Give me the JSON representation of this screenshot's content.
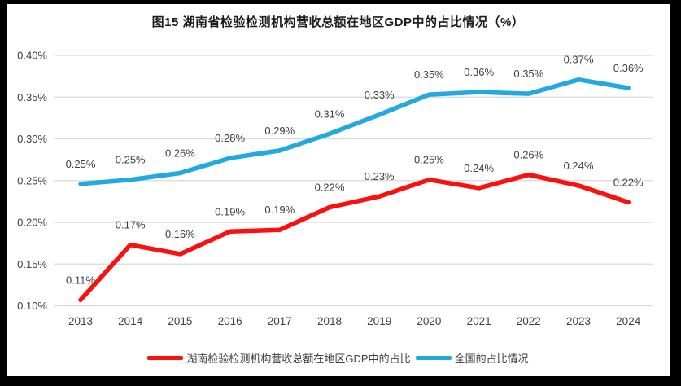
{
  "frame": {
    "background": "#000000",
    "canvas_background": "#ffffff"
  },
  "colors": {
    "grid": "#d9d9d9",
    "axis_text": "#404040",
    "data_label_text": "#404040",
    "title_text": "#1a1a1a",
    "hunan_red": "#fb0f0f",
    "national_blue": "#22a9e0"
  },
  "chart_data": {
    "type": "line",
    "title": "图15 湖南省检验检测机构营收总额在地区GDP中的占比情况（%）",
    "xlabel": "",
    "ylabel": "",
    "grid": true,
    "legend_position": "bottom",
    "categories": [
      "2013",
      "2014",
      "2015",
      "2016",
      "2017",
      "2018",
      "2019",
      "2020",
      "2021",
      "2022",
      "2023",
      "2024"
    ],
    "y_axis": {
      "min": 0.1,
      "max": 0.4,
      "step": 0.05,
      "tick_labels": [
        "0.10%",
        "0.15%",
        "0.20%",
        "0.25%",
        "0.30%",
        "0.35%",
        "0.40%"
      ]
    },
    "series": [
      {
        "name": "湖南检验检测机构营收总额在地区GDP中的占比",
        "color": "#fb0f0f",
        "values": [
          0.107,
          0.173,
          0.162,
          0.189,
          0.191,
          0.218,
          0.231,
          0.251,
          0.241,
          0.257,
          0.244,
          0.224
        ],
        "labels": [
          "0.11%",
          "0.17%",
          "0.16%",
          "0.19%",
          "0.19%",
          "0.22%",
          "0.23%",
          "0.25%",
          "0.24%",
          "0.26%",
          "0.24%",
          "0.22%"
        ]
      },
      {
        "name": "全国的占比情况",
        "color": "#22a9e0",
        "values": [
          0.246,
          0.251,
          0.259,
          0.277,
          0.286,
          0.306,
          0.329,
          0.353,
          0.356,
          0.354,
          0.371,
          0.361
        ],
        "labels": [
          "0.25%",
          "0.25%",
          "0.26%",
          "0.28%",
          "0.29%",
          "0.31%",
          "0.33%",
          "0.35%",
          "0.36%",
          "0.35%",
          "0.37%",
          "0.36%"
        ]
      }
    ]
  }
}
